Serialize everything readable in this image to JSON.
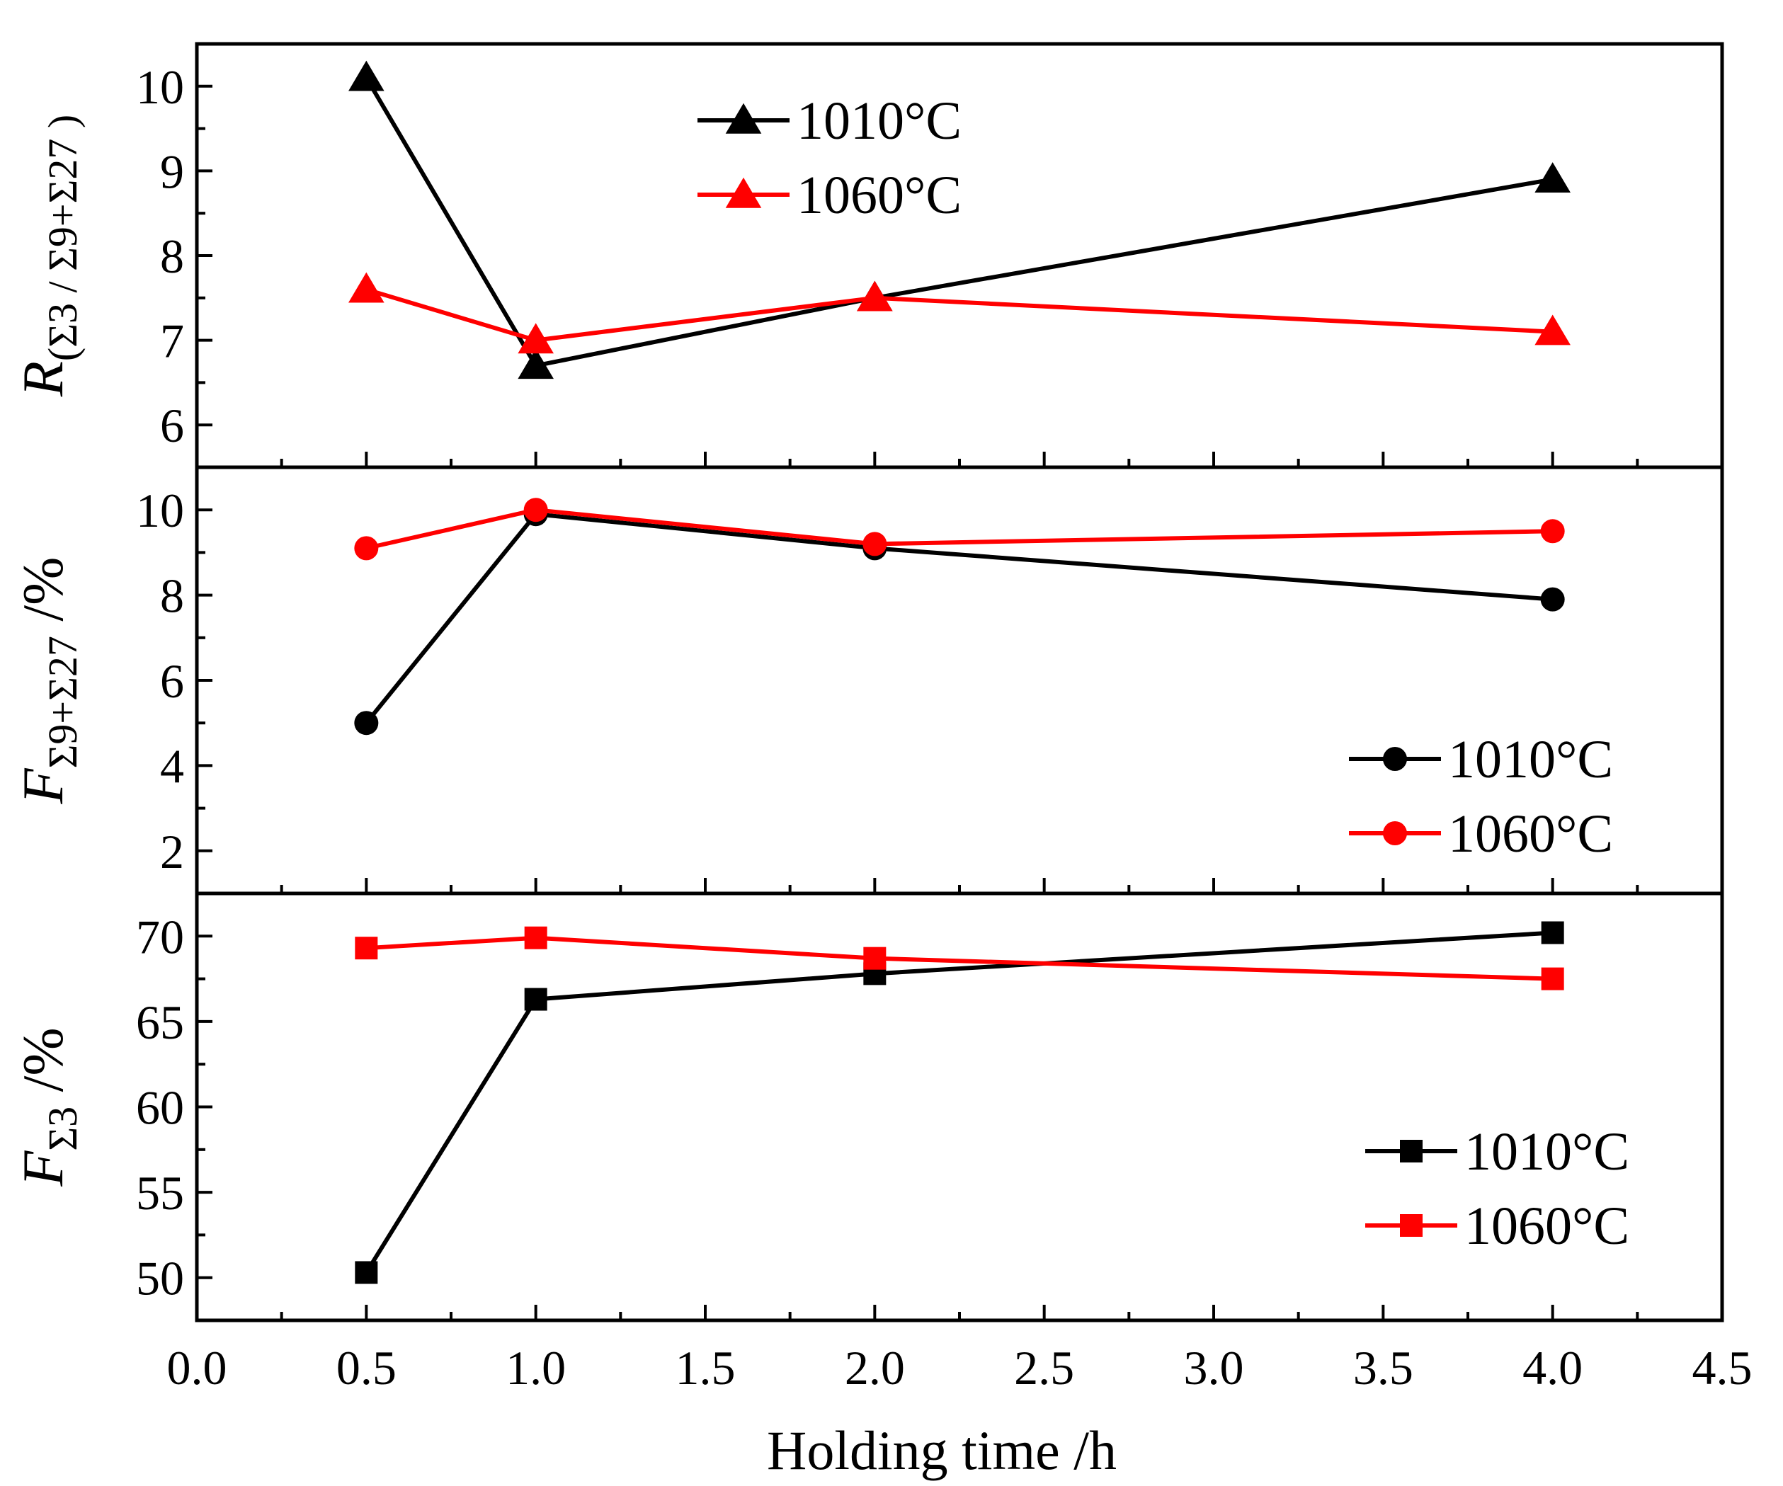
{
  "colors": {
    "1010": "#000000",
    "1060": "#ff0000"
  },
  "xaxis": {
    "label": "Holding time /h",
    "range": [
      0.0,
      4.5
    ],
    "ticks": [
      "0.0",
      "0.5",
      "1.0",
      "1.5",
      "2.0",
      "2.5",
      "3.0",
      "3.5",
      "4.0",
      "4.5"
    ]
  },
  "chart_data": [
    {
      "type": "line",
      "marker": "triangle",
      "ylabel_main": "R",
      "ylabel_sub": "(Σ3 / Σ9+Σ27 )",
      "ylim": [
        5.5,
        10.5
      ],
      "yticks": [
        "6",
        "7",
        "8",
        "9",
        "10"
      ],
      "x": [
        0.5,
        1.0,
        2.0,
        4.0
      ],
      "legend_position": "top-left",
      "series": [
        {
          "name": "1010°C",
          "color": "#000000",
          "values": [
            10.1,
            6.7,
            7.5,
            8.9
          ]
        },
        {
          "name": "1060°C",
          "color": "#ff0000",
          "values": [
            7.6,
            7.0,
            7.5,
            7.1
          ]
        }
      ]
    },
    {
      "type": "line",
      "marker": "circle",
      "ylabel_main": "F",
      "ylabel_sub": "Σ9+Σ27",
      "ylabel_tail": " /%",
      "ylim": [
        1.0,
        11.0
      ],
      "yticks": [
        "2",
        "4",
        "6",
        "8",
        "10"
      ],
      "x": [
        0.5,
        1.0,
        2.0,
        4.0
      ],
      "legend_position": "bottom-right",
      "series": [
        {
          "name": "1010°C",
          "color": "#000000",
          "values": [
            5.0,
            9.9,
            9.1,
            7.9
          ]
        },
        {
          "name": "1060°C",
          "color": "#ff0000",
          "values": [
            9.1,
            10.0,
            9.2,
            9.5
          ]
        }
      ]
    },
    {
      "type": "line",
      "marker": "square",
      "ylabel_main": "F",
      "ylabel_sub": "Σ3",
      "ylabel_tail": " /%",
      "ylim": [
        47.5,
        72.5
      ],
      "yticks": [
        "50",
        "55",
        "60",
        "65",
        "70"
      ],
      "x": [
        0.5,
        1.0,
        2.0,
        4.0
      ],
      "legend_position": "bottom-right",
      "series": [
        {
          "name": "1010°C",
          "color": "#000000",
          "values": [
            50.3,
            66.3,
            67.8,
            70.2
          ]
        },
        {
          "name": "1060°C",
          "color": "#ff0000",
          "values": [
            69.3,
            69.9,
            68.7,
            67.5
          ]
        }
      ]
    }
  ]
}
